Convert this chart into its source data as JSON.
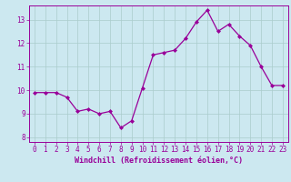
{
  "x": [
    0,
    1,
    2,
    3,
    4,
    5,
    6,
    7,
    8,
    9,
    10,
    11,
    12,
    13,
    14,
    15,
    16,
    17,
    18,
    19,
    20,
    21,
    22,
    23
  ],
  "y": [
    9.9,
    9.9,
    9.9,
    9.7,
    9.1,
    9.2,
    9.0,
    9.1,
    8.4,
    8.7,
    10.1,
    11.5,
    11.6,
    11.7,
    12.2,
    12.9,
    13.4,
    12.5,
    12.8,
    12.3,
    11.9,
    11.0,
    10.2,
    10.2
  ],
  "line_color": "#990099",
  "marker": "D",
  "marker_size": 2.0,
  "xlabel": "Windchill (Refroidissement éolien,°C)",
  "xlim": [
    -0.5,
    23.5
  ],
  "ylim": [
    7.8,
    13.6
  ],
  "yticks": [
    8,
    9,
    10,
    11,
    12,
    13
  ],
  "xticks": [
    0,
    1,
    2,
    3,
    4,
    5,
    6,
    7,
    8,
    9,
    10,
    11,
    12,
    13,
    14,
    15,
    16,
    17,
    18,
    19,
    20,
    21,
    22,
    23
  ],
  "bg_color": "#cce8f0",
  "grid_color": "#aacccc",
  "tick_label_size": 5.5,
  "xlabel_size": 6.0,
  "linewidth": 0.9
}
